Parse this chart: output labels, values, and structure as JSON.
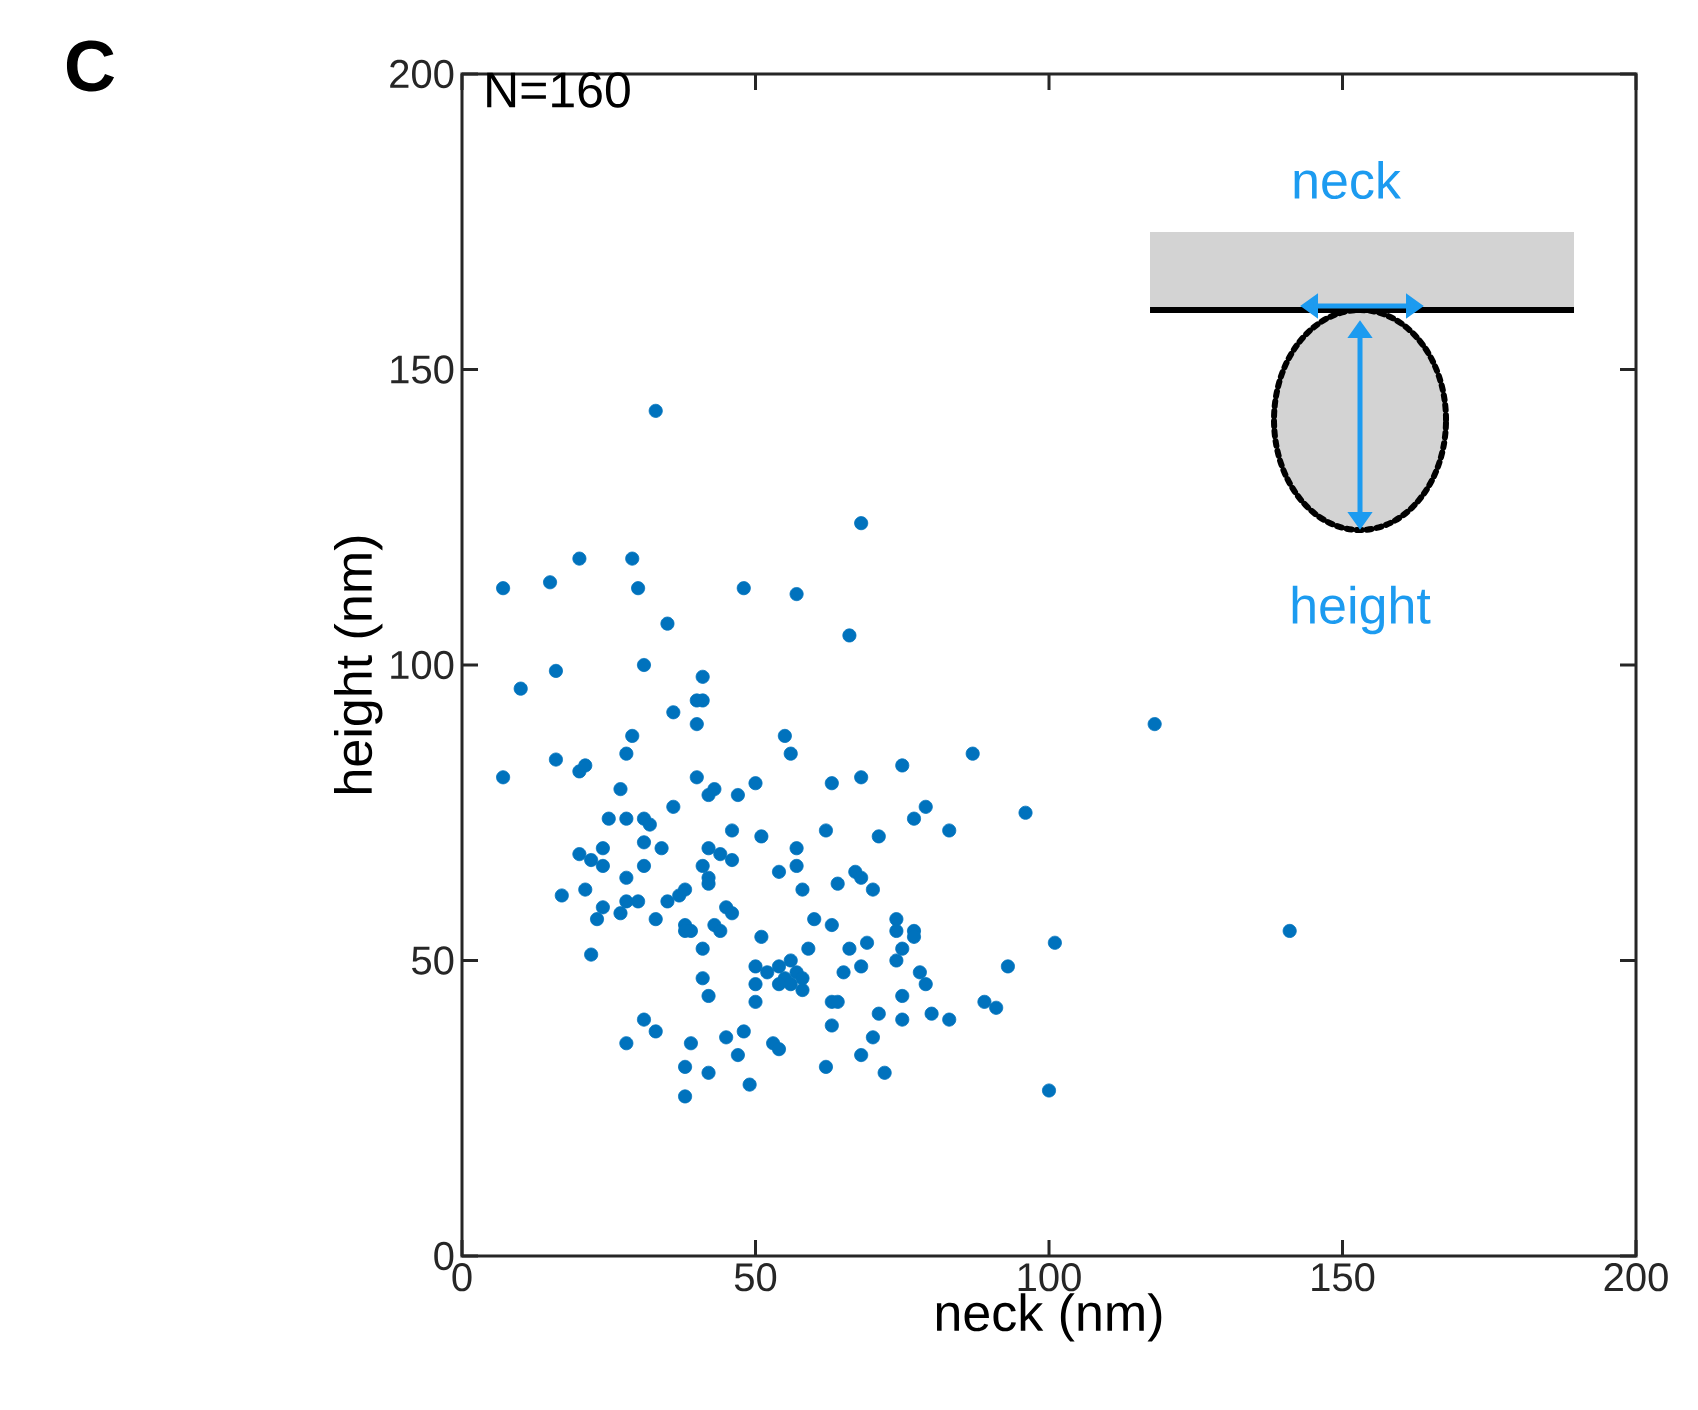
{
  "chart_data": {
    "type": "scatter",
    "xlabel": "neck (nm)",
    "ylabel": "height (nm)",
    "x": [
      33,
      20,
      29,
      7,
      15,
      30,
      48,
      57,
      35,
      10,
      16,
      31,
      41,
      40,
      41,
      36,
      40,
      29,
      55,
      28,
      56,
      7,
      16,
      20,
      21,
      27,
      40,
      42,
      43,
      47,
      50,
      36,
      25,
      28,
      31,
      32,
      46,
      51,
      57,
      20,
      22,
      24,
      24,
      31,
      34,
      31,
      42,
      44,
      46,
      41,
      42,
      42,
      54,
      57,
      28,
      21,
      17,
      24,
      23,
      27,
      28,
      30,
      35,
      37,
      38,
      33,
      38,
      38,
      39,
      43,
      44,
      45,
      46,
      41,
      51,
      22,
      41,
      42,
      50,
      52,
      50,
      50,
      31,
      33,
      28,
      39,
      38,
      38,
      45,
      48,
      47,
      42,
      49,
      53,
      54,
      63,
      68,
      75,
      87,
      77,
      79,
      83,
      96,
      62,
      71,
      58,
      64,
      67,
      68,
      70,
      60,
      63,
      59,
      66,
      69,
      74,
      74,
      77,
      77,
      75,
      74,
      54,
      56,
      57,
      55,
      56,
      54,
      58,
      58,
      65,
      68,
      78,
      79,
      75,
      63,
      64,
      80,
      83,
      89,
      91,
      93,
      101,
      63,
      71,
      75,
      70,
      68,
      62,
      72,
      100,
      118,
      141,
      68,
      66
    ],
    "values": [
      143,
      118,
      118,
      113,
      114,
      113,
      113,
      112,
      107,
      96,
      99,
      100,
      98,
      94,
      94,
      92,
      90,
      88,
      88,
      85,
      85,
      81,
      84,
      82,
      83,
      79,
      81,
      78,
      79,
      78,
      80,
      76,
      74,
      74,
      74,
      73,
      72,
      71,
      69,
      68,
      67,
      69,
      66,
      70,
      69,
      66,
      69,
      68,
      67,
      66,
      64,
      63,
      65,
      66,
      64,
      62,
      61,
      59,
      57,
      58,
      60,
      60,
      60,
      61,
      62,
      57,
      56,
      55,
      55,
      56,
      55,
      59,
      58,
      52,
      54,
      51,
      47,
      44,
      49,
      48,
      46,
      43,
      40,
      38,
      36,
      36,
      32,
      27,
      37,
      38,
      34,
      31,
      29,
      36,
      35,
      80,
      81,
      83,
      85,
      74,
      76,
      72,
      75,
      72,
      71,
      62,
      63,
      65,
      64,
      62,
      57,
      56,
      52,
      52,
      53,
      57,
      55,
      55,
      54,
      52,
      50,
      49,
      50,
      48,
      47,
      46,
      46,
      45,
      47,
      48,
      49,
      48,
      46,
      44,
      43,
      43,
      41,
      40,
      43,
      42,
      49,
      53,
      39,
      41,
      40,
      37,
      34,
      32,
      31,
      28,
      90,
      55,
      124,
      105
    ],
    "color": "#0072bd",
    "marker": "circle",
    "xlim": [
      0,
      200
    ],
    "ylim": [
      0,
      200
    ],
    "xticks": [
      0,
      50,
      100,
      150,
      200
    ],
    "yticks": [
      0,
      50,
      100,
      150,
      200
    ],
    "annotations": [
      "C",
      "N=160",
      "neck",
      "height"
    ]
  }
}
